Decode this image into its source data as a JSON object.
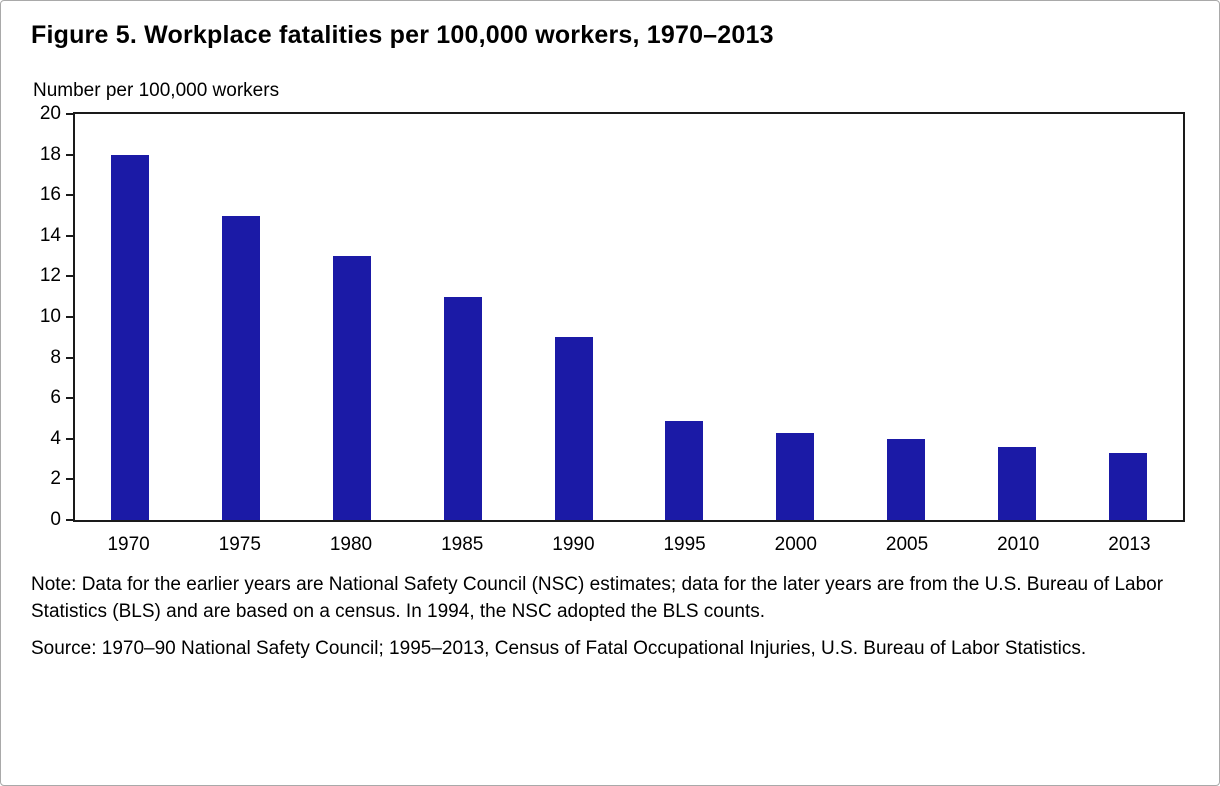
{
  "figure": {
    "title": "Figure 5. Workplace fatalities per 100,000 workers, 1970–2013",
    "y_axis_caption": "Number per 100,000 workers",
    "note": "Note: Data for the earlier years are National Safety Council (NSC) estimates; data for the later years are from the U.S. Bureau of Labor Statistics (BLS) and are based on a census. In 1994, the NSC adopted the BLS counts.",
    "source": "Source: 1970–90 National Safety Council; 1995–2013, Census of Fatal Occupational Injuries, U.S. Bureau of Labor Statistics."
  },
  "chart_data": {
    "type": "bar",
    "title": "Figure 5. Workplace fatalities per 100,000 workers, 1970–2013",
    "categories": [
      "1970",
      "1975",
      "1980",
      "1985",
      "1990",
      "1995",
      "2000",
      "2005",
      "2010",
      "2013"
    ],
    "values": [
      18,
      15,
      13,
      11,
      9,
      4.9,
      4.3,
      4.0,
      3.6,
      3.3
    ],
    "xlabel": "",
    "ylabel": "Number per 100,000 workers",
    "ylim": [
      0,
      20
    ],
    "ytick_step": 2,
    "grid": false,
    "legend": "none",
    "bar_color": "#1b1aa6"
  }
}
